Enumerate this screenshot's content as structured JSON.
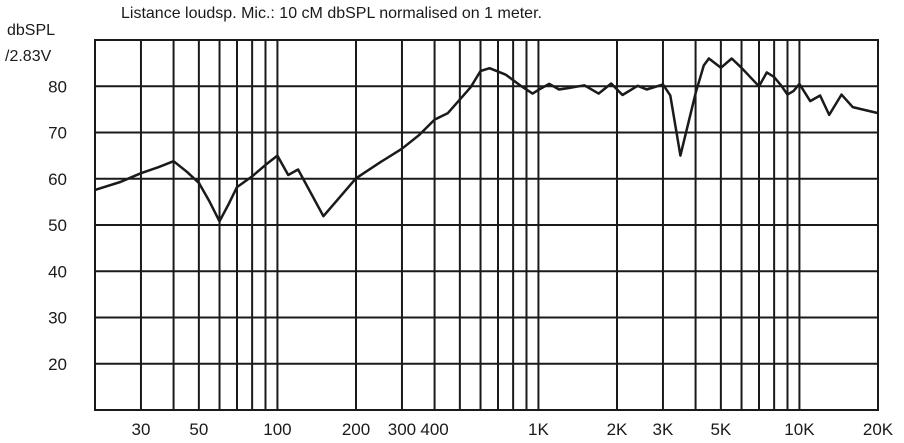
{
  "chart_data": {
    "type": "line",
    "title": "Listance loudsp. Mic.: 10 cM dbSPL normalised on 1 meter.",
    "ylabel_lines": [
      "dbSPL",
      "/2.83V"
    ],
    "xlabel": "",
    "x_scale": "log",
    "xlim": [
      20,
      20000
    ],
    "ylim": [
      10,
      90
    ],
    "y_ticks": [
      20,
      30,
      40,
      50,
      60,
      70,
      80
    ],
    "x_tick_labels": [
      {
        "value": 30,
        "label": "30"
      },
      {
        "value": 50,
        "label": "50"
      },
      {
        "value": 100,
        "label": "100"
      },
      {
        "value": 200,
        "label": "200"
      },
      {
        "value": 300,
        "label": "300"
      },
      {
        "value": 400,
        "label": "400"
      },
      {
        "value": 1000,
        "label": "1K"
      },
      {
        "value": 2000,
        "label": "2K"
      },
      {
        "value": 3000,
        "label": "3K"
      },
      {
        "value": 5000,
        "label": "5K"
      },
      {
        "value": 10000,
        "label": "10K"
      },
      {
        "value": 20000,
        "label": "20K"
      }
    ],
    "x_gridlines": [
      20,
      30,
      40,
      50,
      60,
      70,
      80,
      90,
      100,
      200,
      300,
      400,
      500,
      600,
      700,
      800,
      900,
      1000,
      2000,
      3000,
      4000,
      5000,
      6000,
      7000,
      8000,
      9000,
      10000,
      20000
    ],
    "grid": true,
    "series": [
      {
        "color": "#1a1a1a",
        "points": [
          [
            20,
            57.6
          ],
          [
            25,
            59.3
          ],
          [
            30,
            61.2
          ],
          [
            35,
            62.5
          ],
          [
            40,
            63.8
          ],
          [
            45,
            61.5
          ],
          [
            50,
            59.1
          ],
          [
            55,
            55.0
          ],
          [
            60,
            50.8
          ],
          [
            65,
            54.5
          ],
          [
            70,
            58.2
          ],
          [
            80,
            60.5
          ],
          [
            90,
            63.0
          ],
          [
            100,
            65.0
          ],
          [
            110,
            60.8
          ],
          [
            120,
            62.0
          ],
          [
            150,
            51.9
          ],
          [
            200,
            60.1
          ],
          [
            250,
            63.7
          ],
          [
            300,
            66.5
          ],
          [
            350,
            69.5
          ],
          [
            400,
            72.8
          ],
          [
            450,
            74.2
          ],
          [
            550,
            79.8
          ],
          [
            600,
            83.3
          ],
          [
            650,
            83.9
          ],
          [
            750,
            82.5
          ],
          [
            850,
            80.2
          ],
          [
            950,
            78.4
          ],
          [
            1000,
            79.2
          ],
          [
            1100,
            80.5
          ],
          [
            1200,
            79.3
          ],
          [
            1300,
            79.6
          ],
          [
            1500,
            80.2
          ],
          [
            1700,
            78.4
          ],
          [
            1900,
            80.6
          ],
          [
            2100,
            78.1
          ],
          [
            2400,
            80.1
          ],
          [
            2600,
            79.3
          ],
          [
            3000,
            80.4
          ],
          [
            3200,
            78.0
          ],
          [
            3500,
            65.0
          ],
          [
            4000,
            78.5
          ],
          [
            4300,
            84.5
          ],
          [
            4500,
            86.0
          ],
          [
            5000,
            84.0
          ],
          [
            5500,
            86.0
          ],
          [
            6000,
            84.0
          ],
          [
            7000,
            80.0
          ],
          [
            7500,
            83.0
          ],
          [
            8000,
            82.0
          ],
          [
            8500,
            80.2
          ],
          [
            9000,
            78.2
          ],
          [
            9500,
            79.0
          ],
          [
            10000,
            80.5
          ],
          [
            11000,
            76.8
          ],
          [
            12000,
            78.0
          ],
          [
            13000,
            73.8
          ],
          [
            14500,
            78.2
          ],
          [
            16000,
            75.5
          ],
          [
            20000,
            74.2
          ]
        ]
      }
    ]
  }
}
